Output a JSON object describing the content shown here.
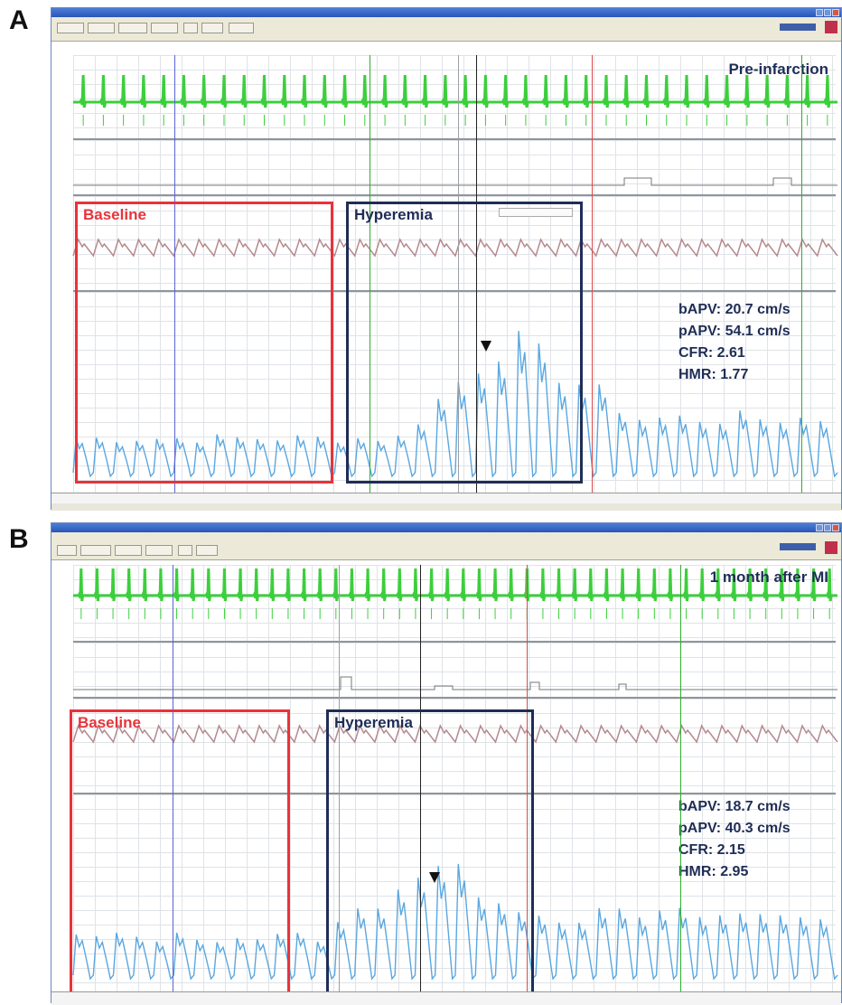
{
  "panels": [
    {
      "letter": "A",
      "condition": "Pre-infarction",
      "baseline_label": "Baseline",
      "hyperemia_label": "Hyperemia",
      "stats": {
        "bapv": "bAPV: 20.7 cm/s",
        "papv": "pAPV: 54.1 cm/s",
        "cfr": "CFR: 2.61",
        "hmr": "HMR: 1.77"
      }
    },
    {
      "letter": "B",
      "condition": "1 month after MI",
      "baseline_label": "Baseline",
      "hyperemia_label": "Hyperemia",
      "stats": {
        "bapv": "bAPV: 18.7 cm/s",
        "papv": "pAPV: 40.3 cm/s",
        "cfr": "CFR: 2.15",
        "hmr": "HMR: 2.95"
      }
    }
  ],
  "colors": {
    "ecg_trace": "#3ccf3c",
    "pressure_trace": "#b58a8f",
    "flow_trace": "#5aa7e0",
    "baseline_box": "#e8333a",
    "hyperemia_box": "#1f2d56",
    "cursor_blue": "#5b63d6",
    "cursor_green": "#2fae2f",
    "cursor_black": "#222222",
    "cursor_red": "#d84a4a"
  },
  "icons": {
    "arrowhead": "arrowhead-icon",
    "window_controls": [
      "minimize-icon",
      "maximize-icon",
      "close-icon"
    ]
  }
}
